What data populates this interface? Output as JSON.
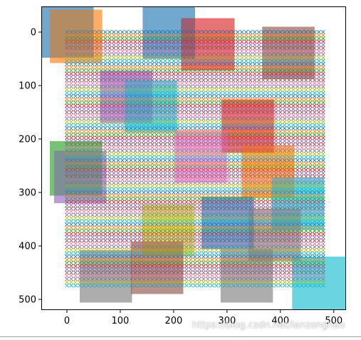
{
  "chart_data": {
    "type": "scatter",
    "title": "",
    "xlabel": "",
    "ylabel": "",
    "xlim": [
      -48,
      523
    ],
    "ylim": [
      520,
      -48
    ],
    "y_inverted": true,
    "grid": false,
    "x_ticks": [
      0,
      100,
      200,
      300,
      400,
      500
    ],
    "y_ticks": [
      0,
      100,
      200,
      300,
      400,
      500
    ],
    "marker": "x",
    "point_grid": {
      "x_start": 0,
      "x_end": 480,
      "x_step": 8,
      "y_start": 0,
      "y_end": 478,
      "y_step": 6,
      "colors": [
        "#1f77b4",
        "#ff7f0e",
        "#2ca02c",
        "#d62728",
        "#9467bd",
        "#8c564b",
        "#e377c2",
        "#7f7f7f",
        "#bcbd22",
        "#17becf"
      ]
    },
    "rectangles": [
      {
        "x0": -48,
        "y0": -48,
        "x1": 50,
        "y1": 48,
        "color": "#1f77b4"
      },
      {
        "x0": -32,
        "y0": -42,
        "x1": 66,
        "y1": 58,
        "color": "#ff7f0e"
      },
      {
        "x0": 142,
        "y0": -48,
        "x1": 240,
        "y1": 50,
        "color": "#1f77b4"
      },
      {
        "x0": 214,
        "y0": -26,
        "x1": 314,
        "y1": 72,
        "color": "#d62728"
      },
      {
        "x0": 366,
        "y0": -10,
        "x1": 464,
        "y1": 88,
        "color": "#8c564b"
      },
      {
        "x0": 62,
        "y0": 72,
        "x1": 160,
        "y1": 170,
        "color": "#9467bd"
      },
      {
        "x0": 108,
        "y0": 90,
        "x1": 206,
        "y1": 188,
        "color": "#17becf"
      },
      {
        "x0": 290,
        "y0": 126,
        "x1": 388,
        "y1": 226,
        "color": "#d62728"
      },
      {
        "x0": -32,
        "y0": 204,
        "x1": 66,
        "y1": 306,
        "color": "#2ca02c"
      },
      {
        "x0": -24,
        "y0": 222,
        "x1": 74,
        "y1": 320,
        "color": "#9467bd"
      },
      {
        "x0": 202,
        "y0": 184,
        "x1": 300,
        "y1": 282,
        "color": "#e377c2"
      },
      {
        "x0": 328,
        "y0": 212,
        "x1": 426,
        "y1": 310,
        "color": "#ff7f0e"
      },
      {
        "x0": 384,
        "y0": 272,
        "x1": 482,
        "y1": 370,
        "color": "#17becf"
      },
      {
        "x0": 140,
        "y0": 322,
        "x1": 238,
        "y1": 420,
        "color": "#bcbd22"
      },
      {
        "x0": 252,
        "y0": 308,
        "x1": 350,
        "y1": 406,
        "color": "#1f77b4"
      },
      {
        "x0": 340,
        "y0": 330,
        "x1": 438,
        "y1": 428,
        "color": "#7f7f7f"
      },
      {
        "x0": 24,
        "y0": 408,
        "x1": 122,
        "y1": 506,
        "color": "#7f7f7f"
      },
      {
        "x0": 120,
        "y0": 392,
        "x1": 218,
        "y1": 490,
        "color": "#8c564b"
      },
      {
        "x0": 288,
        "y0": 406,
        "x1": 386,
        "y1": 506,
        "color": "#7f7f7f"
      },
      {
        "x0": 422,
        "y0": 420,
        "x1": 522,
        "y1": 520,
        "color": "#17becf"
      }
    ]
  },
  "colors": {
    "axis": "#000000",
    "background": "#ffffff"
  },
  "watermark": "https://blog.csdn.net/lanzonghao"
}
